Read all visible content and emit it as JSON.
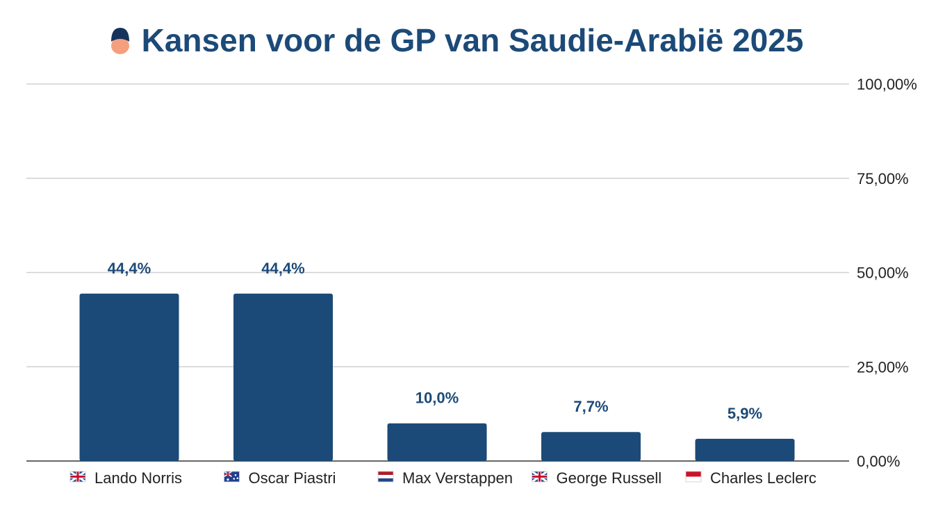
{
  "chart_data": {
    "type": "bar",
    "title": "Kansen voor de GP van Saudie-Arabië 2025",
    "title_icon": "person-emoji-icon",
    "categories": [
      "Lando Norris",
      "Oscar Piastri",
      "Max Verstappen",
      "George Russell",
      "Charles Leclerc"
    ],
    "category_flags": [
      "gb-flag-icon",
      "au-flag-icon",
      "nl-flag-icon",
      "gb-flag-icon",
      "mc-flag-icon"
    ],
    "values": [
      44.4,
      44.4,
      10.0,
      7.7,
      5.9
    ],
    "data_labels": [
      "44,4%",
      "44,4%",
      "10,0%",
      "7,7%",
      "5,9%"
    ],
    "ylim": [
      0,
      100
    ],
    "yticks": [
      0,
      25,
      50,
      75,
      100
    ],
    "ytick_labels": [
      "0,00%",
      "25,00%",
      "50,00%",
      "75,00%",
      "100,00%"
    ],
    "xlabel": "",
    "ylabel": "",
    "y_axis_position": "right",
    "grid": true,
    "legend": "none",
    "bar_color": "#1c4a78",
    "label_color": "#1c4a78"
  }
}
